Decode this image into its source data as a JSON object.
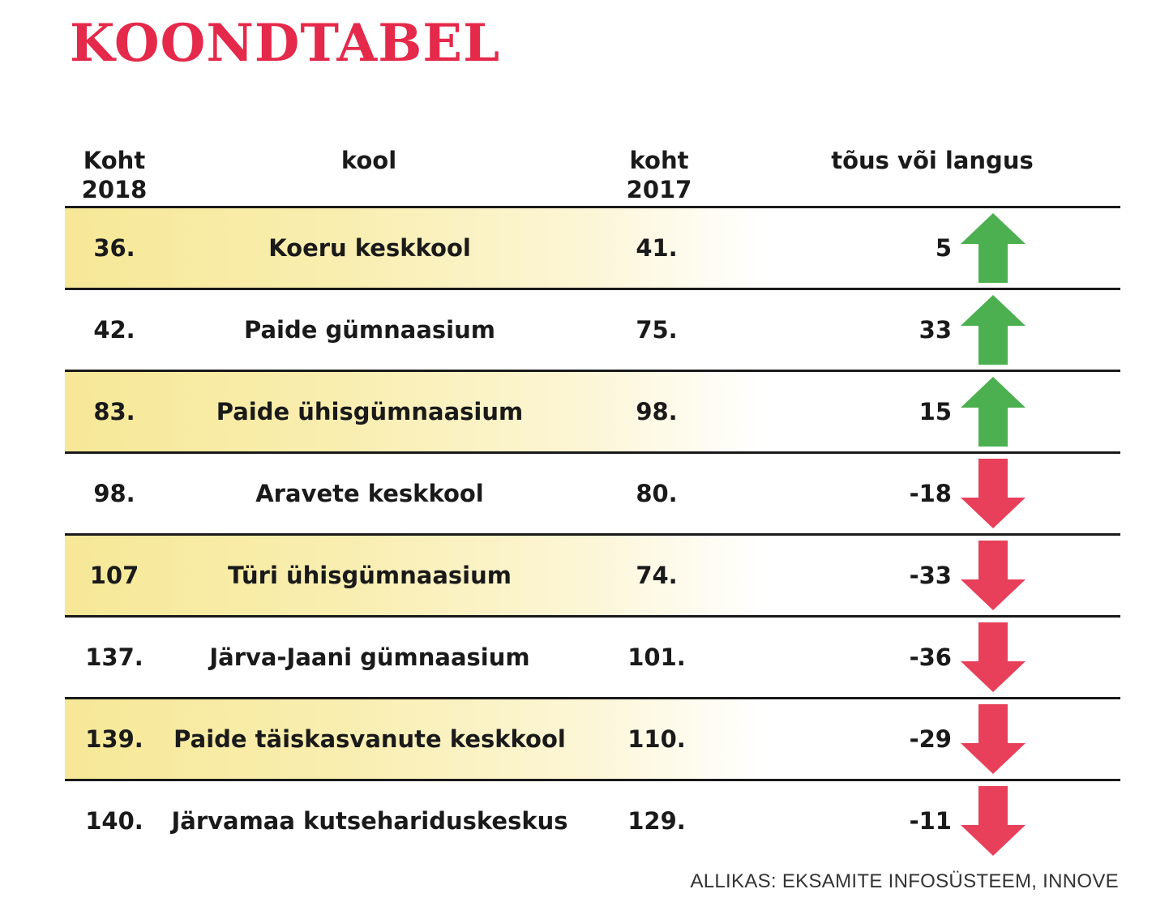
{
  "title": "KOONDTABEL",
  "colors": {
    "title": "#e5294a",
    "up": "#4caf50",
    "down": "#e8405a",
    "highlight": "#f6e897"
  },
  "headers": {
    "rank_2018": [
      "Koht",
      "2018"
    ],
    "school": "kool",
    "rank_2017": [
      "koht",
      "2017"
    ],
    "change": "tõus või langus"
  },
  "chart_data": {
    "type": "table",
    "columns": [
      "Koht 2018",
      "kool",
      "koht 2017",
      "tõus või langus"
    ],
    "rows": [
      {
        "rank_2018": "36.",
        "school": "Koeru keskkool",
        "rank_2017": "41.",
        "change": "5",
        "direction": "up",
        "shaded": true
      },
      {
        "rank_2018": "42.",
        "school": "Paide gümnaasium",
        "rank_2017": "75.",
        "change": "33",
        "direction": "up",
        "shaded": false
      },
      {
        "rank_2018": "83.",
        "school": "Paide ühisgümnaasium",
        "rank_2017": "98.",
        "change": "15",
        "direction": "up",
        "shaded": true
      },
      {
        "rank_2018": "98.",
        "school": "Aravete keskkool",
        "rank_2017": "80.",
        "change": "-18",
        "direction": "down",
        "shaded": false
      },
      {
        "rank_2018": "107",
        "school": "Türi ühisgümnaasium",
        "rank_2017": "74.",
        "change": "-33",
        "direction": "down",
        "shaded": true
      },
      {
        "rank_2018": "137.",
        "school": "Järva-Jaani gümnaasium",
        "rank_2017": "101.",
        "change": "-36",
        "direction": "down",
        "shaded": false
      },
      {
        "rank_2018": "139.",
        "school": "Paide täiskasvanute keskkool",
        "rank_2017": "110.",
        "change": "-29",
        "direction": "down",
        "shaded": true
      },
      {
        "rank_2018": "140.",
        "school": "Järvamaa kutsehariduskeskus",
        "rank_2017": "129.",
        "change": "-11",
        "direction": "down",
        "shaded": false
      }
    ]
  },
  "source": "ALLIKAS: EKSAMITE INFOSÜSTEEM, INNOVE"
}
